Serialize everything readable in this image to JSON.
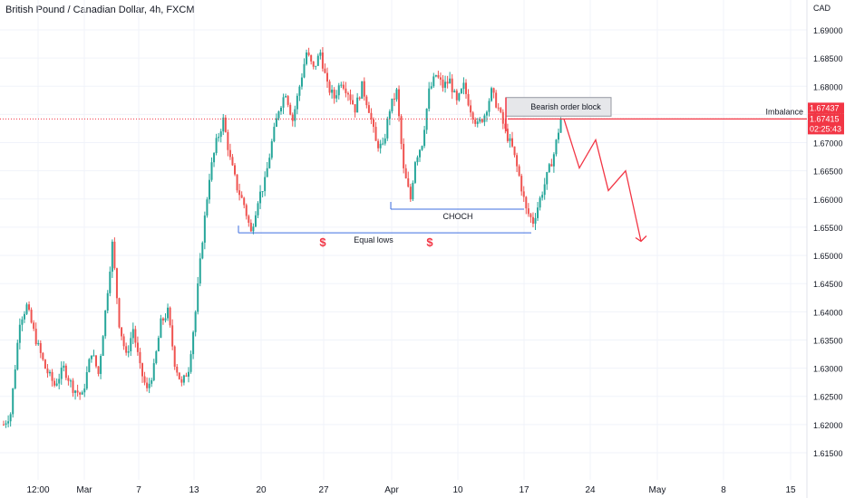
{
  "header": {
    "symbol_title": "British Pound / Canadian Dollar, 4h, FXCM",
    "currency": "CAD"
  },
  "colors": {
    "up": "#26a69a",
    "down": "#ef5350",
    "annotation_blue": "#3f6fe0",
    "annotation_red": "#f23645",
    "grid": "#f0f3fa",
    "axis_text": "#131722"
  },
  "chart_data": {
    "type": "candlestick",
    "ylim": [
      1.612,
      1.692
    ],
    "y_ticks": [
      "1.61500",
      "1.62000",
      "1.62500",
      "1.63000",
      "1.63500",
      "1.64000",
      "1.64500",
      "1.65000",
      "1.65500",
      "1.66000",
      "1.66500",
      "1.67000",
      "1.67500",
      "1.68000",
      "1.68500",
      "1.69000"
    ],
    "x_ticks": [
      "12:00",
      "Mar",
      "7",
      "13",
      "20",
      "27",
      "Apr",
      "10",
      "17",
      "24",
      "May",
      "8",
      "15"
    ],
    "price_path": [
      [
        0,
        1.62
      ],
      [
        3,
        1.622
      ],
      [
        7,
        1.6385
      ],
      [
        10,
        1.641
      ],
      [
        14,
        1.635
      ],
      [
        18,
        1.63
      ],
      [
        22,
        1.627
      ],
      [
        26,
        1.63
      ],
      [
        30,
        1.6265
      ],
      [
        34,
        1.625
      ],
      [
        38,
        1.633
      ],
      [
        41,
        1.629
      ],
      [
        44,
        1.64
      ],
      [
        47,
        1.652
      ],
      [
        50,
        1.638
      ],
      [
        53,
        1.632
      ],
      [
        56,
        1.637
      ],
      [
        59,
        1.63
      ],
      [
        62,
        1.626
      ],
      [
        65,
        1.63
      ],
      [
        68,
        1.638
      ],
      [
        71,
        1.64
      ],
      [
        74,
        1.631
      ],
      [
        77,
        1.627
      ],
      [
        80,
        1.63
      ],
      [
        83,
        1.64
      ],
      [
        86,
        1.653
      ],
      [
        89,
        1.664
      ],
      [
        92,
        1.67
      ],
      [
        95,
        1.674
      ],
      [
        98,
        1.667
      ],
      [
        101,
        1.662
      ],
      [
        104,
        1.659
      ],
      [
        107,
        1.654
      ],
      [
        110,
        1.66
      ],
      [
        113,
        1.663
      ],
      [
        116,
        1.67
      ],
      [
        119,
        1.676
      ],
      [
        122,
        1.679
      ],
      [
        125,
        1.674
      ],
      [
        128,
        1.68
      ],
      [
        131,
        1.686
      ],
      [
        134,
        1.683
      ],
      [
        137,
        1.686
      ],
      [
        140,
        1.68
      ],
      [
        143,
        1.678
      ],
      [
        146,
        1.681
      ],
      [
        149,
        1.679
      ],
      [
        152,
        1.676
      ],
      [
        155,
        1.68
      ],
      [
        158,
        1.676
      ],
      [
        161,
        1.67
      ],
      [
        164,
        1.669
      ],
      [
        167,
        1.676
      ],
      [
        170,
        1.679
      ],
      [
        173,
        1.665
      ],
      [
        176,
        1.66
      ],
      [
        178,
        1.667
      ],
      [
        181,
        1.67
      ],
      [
        184,
        1.679
      ],
      [
        187,
        1.682
      ],
      [
        190,
        1.68
      ],
      [
        193,
        1.681
      ],
      [
        196,
        1.677
      ],
      [
        199,
        1.68
      ],
      [
        202,
        1.676
      ],
      [
        205,
        1.673
      ],
      [
        208,
        1.675
      ],
      [
        211,
        1.679
      ],
      [
        214,
        1.676
      ],
      [
        217,
        1.672
      ],
      [
        220,
        1.669
      ],
      [
        223,
        1.664
      ],
      [
        226,
        1.658
      ],
      [
        229,
        1.656
      ],
      [
        232,
        1.66
      ],
      [
        235,
        1.664
      ],
      [
        238,
        1.668
      ],
      [
        241,
        1.6742
      ]
    ],
    "levels": [
      {
        "label": "Equal lows",
        "price": 1.654
      },
      {
        "label": "CHOCH",
        "price": 1.6582
      },
      {
        "label": "Imbalance",
        "price": 1.6742
      }
    ],
    "order_block": {
      "label": "Bearish order block",
      "top": 1.678,
      "bottom": 1.6747
    },
    "dollar_marker": "$",
    "projection_path": [
      1.6742,
      1.6655,
      1.6705,
      1.6615,
      1.665,
      1.6525
    ],
    "price_tags": {
      "current_a": "1.67437",
      "current_b": "1.67415",
      "countdown": "02:25:43"
    }
  }
}
